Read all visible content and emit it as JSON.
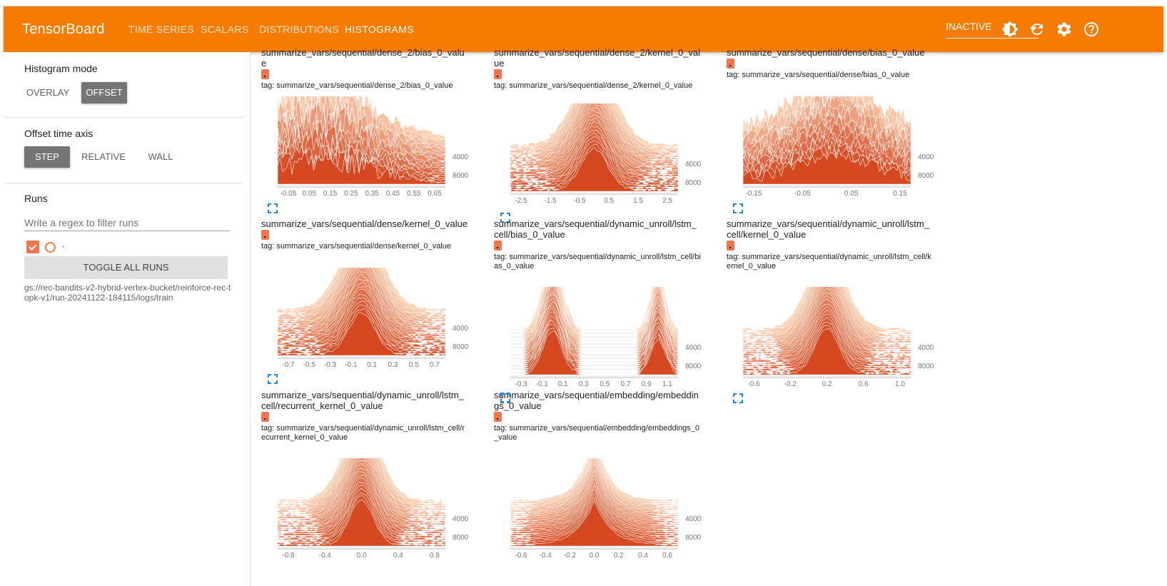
{
  "app": {
    "brand": "TensorBoard",
    "tabs": [
      {
        "label": "TIME SERIES",
        "active": false
      },
      {
        "label": "SCALARS",
        "active": false
      },
      {
        "label": "DISTRIBUTIONS",
        "active": false
      },
      {
        "label": "HISTOGRAMS",
        "active": true
      }
    ],
    "status": "INACTIVE",
    "icons": [
      "brightness-icon",
      "refresh-icon",
      "settings-icon",
      "help-icon"
    ],
    "accent": "#f57c00"
  },
  "sidebar": {
    "histogram_mode": {
      "title": "Histogram mode",
      "options": [
        "OVERLAY",
        "OFFSET"
      ],
      "selected": "OFFSET"
    },
    "offset_axis": {
      "title": "Offset time axis",
      "options": [
        "STEP",
        "RELATIVE",
        "WALL"
      ],
      "selected": "STEP"
    },
    "runs": {
      "title": "Runs",
      "filter_placeholder": "Write a regex to filter runs",
      "run_label": ".",
      "toggle_label": "TOGGLE ALL RUNS",
      "run_path": "gs://rec-bandits-v2-hybrid-vertex-bucket/reinforce-rec-topk-v1/run-20241122-184115/logs/train",
      "run_color": "#f4754c"
    }
  },
  "cards": [
    {
      "title": "summarize_vars/sequential/dense_2/bias_0_value",
      "tag": "tag: summarize_vars/sequential/dense_2/bias_0_value",
      "xticks": [
        "-0.05",
        "0.05",
        "0.15",
        "0.25",
        "0.35",
        "0.45",
        "0.55",
        "0.65"
      ],
      "yticks": [
        "4000",
        "8000"
      ],
      "shape": "spiky"
    },
    {
      "title": "summarize_vars/sequential/dense_2/kernel_0_value",
      "tag": "tag: summarize_vars/sequential/dense_2/kernel_0_value",
      "xticks": [
        "-2.5",
        "-1.5",
        "-0.5",
        "0.5",
        "1.5",
        "2.5"
      ],
      "yticks": [
        "4000",
        "8000"
      ],
      "shape": "bell"
    },
    {
      "title": "summarize_vars/sequential/dense/bias_0_value",
      "tag": "tag: summarize_vars/sequential/dense/bias_0_value",
      "xticks": [
        "-0.15",
        "-0.05",
        "0.05",
        "0.15"
      ],
      "yticks": [
        "4000",
        "8000"
      ],
      "shape": "broad"
    },
    {
      "title": "summarize_vars/sequential/dense/kernel_0_value",
      "tag": "tag: summarize_vars/sequential/dense/kernel_0_value",
      "xticks": [
        "-0.7",
        "-0.5",
        "-0.3",
        "-0.1",
        "0.1",
        "0.3",
        "0.5",
        "0.7"
      ],
      "yticks": [
        "4000",
        "8000"
      ],
      "shape": "bell"
    },
    {
      "title": "summarize_vars/sequential/dynamic_unroll/lstm_cell/bias_0_value",
      "tag": "tag: summarize_vars/sequential/dynamic_unroll/lstm_cell/bias_0_value",
      "xticks": [
        "-0.3",
        "-0.1",
        "0.1",
        "0.3",
        "0.5",
        "0.7",
        "0.9",
        "1.1"
      ],
      "yticks": [
        "4000",
        "8000"
      ],
      "shape": "bimodal"
    },
    {
      "title": "summarize_vars/sequential/dynamic_unroll/lstm_cell/kernel_0_value",
      "tag": "tag: summarize_vars/sequential/dynamic_unroll/lstm_cell/kernel_0_value",
      "xticks": [
        "-0.6",
        "-0.2",
        "0.2",
        "0.6",
        "1.0"
      ],
      "yticks": [
        "4000",
        "8000"
      ],
      "shape": "narrow"
    },
    {
      "title": "summarize_vars/sequential/dynamic_unroll/lstm_cell/recurrent_kernel_0_value",
      "tag": "tag: summarize_vars/sequential/dynamic_unroll/lstm_cell/recurrent_kernel_0_value",
      "xticks": [
        "-0.8",
        "-0.4",
        "0.0",
        "0.4",
        "0.8"
      ],
      "yticks": [
        "4000",
        "8000"
      ],
      "shape": "narrow"
    },
    {
      "title": "summarize_vars/sequential/embedding/embeddings_0_value",
      "tag": "tag: summarize_vars/sequential/embedding/embeddings_0_value",
      "xticks": [
        "-0.6",
        "-0.4",
        "-0.2",
        "0.0",
        "0.2",
        "0.4",
        "0.6"
      ],
      "yticks": [
        "4000",
        "8000"
      ],
      "shape": "sharp"
    }
  ]
}
